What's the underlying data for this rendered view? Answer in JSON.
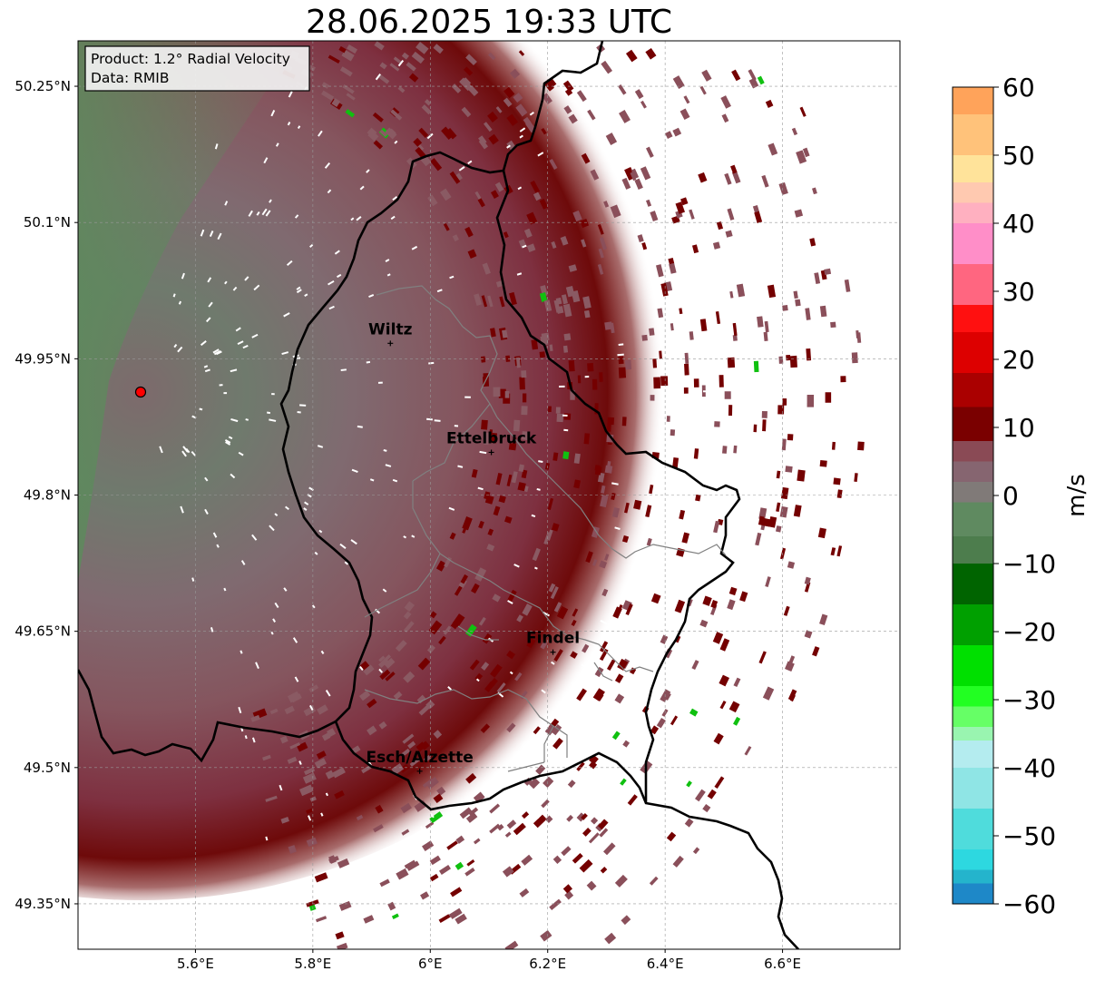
{
  "title": "28.06.2025 19:33 UTC",
  "info_box": {
    "product": "Product: 1.2° Radial Velocity",
    "data": "Data: RMIB"
  },
  "map": {
    "lon_ticks": [
      {
        "value": 5.6,
        "label": "5.6°E"
      },
      {
        "value": 5.8,
        "label": "5.8°E"
      },
      {
        "value": 6.0,
        "label": "6°E"
      },
      {
        "value": 6.2,
        "label": "6.2°E"
      },
      {
        "value": 6.4,
        "label": "6.4°E"
      },
      {
        "value": 6.6,
        "label": "6.6°E"
      }
    ],
    "lat_ticks": [
      {
        "value": 50.25,
        "label": "50.25°N"
      },
      {
        "value": 50.1,
        "label": "50.1°N"
      },
      {
        "value": 49.95,
        "label": "49.95°N"
      },
      {
        "value": 49.8,
        "label": "49.8°N"
      },
      {
        "value": 49.65,
        "label": "49.65°N"
      },
      {
        "value": 49.5,
        "label": "49.5°N"
      },
      {
        "value": 49.35,
        "label": "49.35°N"
      }
    ],
    "extent": {
      "lon_min": 5.4,
      "lon_max": 6.8,
      "lat_min": 49.3,
      "lat_max": 50.3
    },
    "radar_site": {
      "lon": 5.505,
      "lat": 49.914
    },
    "cities": [
      {
        "name": "Wiltz",
        "lon": 5.932,
        "lat": 49.967
      },
      {
        "name": "Ettelbruck",
        "lon": 6.104,
        "lat": 49.847
      },
      {
        "name": "Findel",
        "lon": 6.209,
        "lat": 49.627
      },
      {
        "name": "Esch/Alzette",
        "lon": 5.982,
        "lat": 49.496
      }
    ],
    "grid": true
  },
  "colorbar": {
    "label": "m/s",
    "min": -60,
    "max": 60,
    "ticks": [
      {
        "value": 60,
        "label": "60"
      },
      {
        "value": 50,
        "label": "50"
      },
      {
        "value": 40,
        "label": "40"
      },
      {
        "value": 30,
        "label": "30"
      },
      {
        "value": 20,
        "label": "20"
      },
      {
        "value": 10,
        "label": "10"
      },
      {
        "value": 0,
        "label": "0"
      },
      {
        "value": -10,
        "label": "−10"
      },
      {
        "value": -20,
        "label": "−20"
      },
      {
        "value": -30,
        "label": "−30"
      },
      {
        "value": -40,
        "label": "−40"
      },
      {
        "value": -50,
        "label": "−50"
      },
      {
        "value": -60,
        "label": "−60"
      }
    ],
    "bands": [
      {
        "from": 56,
        "to": 60,
        "color": "#ffa35a"
      },
      {
        "from": 50,
        "to": 56,
        "color": "#ffc27a"
      },
      {
        "from": 46,
        "to": 50,
        "color": "#ffe39a"
      },
      {
        "from": 43,
        "to": 46,
        "color": "#ffc9b0"
      },
      {
        "from": 40,
        "to": 43,
        "color": "#ffb0c0"
      },
      {
        "from": 34,
        "to": 40,
        "color": "#ff8ec8"
      },
      {
        "from": 28,
        "to": 34,
        "color": "#ff6680"
      },
      {
        "from": 24,
        "to": 28,
        "color": "#ff1010"
      },
      {
        "from": 18,
        "to": 24,
        "color": "#dd0000"
      },
      {
        "from": 13,
        "to": 18,
        "color": "#aa0000"
      },
      {
        "from": 8,
        "to": 13,
        "color": "#7a0000"
      },
      {
        "from": 5,
        "to": 8,
        "color": "#8a4a55"
      },
      {
        "from": 2,
        "to": 5,
        "color": "#866570"
      },
      {
        "from": -1,
        "to": 2,
        "color": "#807a78"
      },
      {
        "from": -6,
        "to": -1,
        "color": "#5f8a60"
      },
      {
        "from": -10,
        "to": -6,
        "color": "#4d7d4d"
      },
      {
        "from": -16,
        "to": -10,
        "color": "#006400"
      },
      {
        "from": -22,
        "to": -16,
        "color": "#00a000"
      },
      {
        "from": -28,
        "to": -22,
        "color": "#00e000"
      },
      {
        "from": -31,
        "to": -28,
        "color": "#22ff22"
      },
      {
        "from": -34,
        "to": -31,
        "color": "#66ff66"
      },
      {
        "from": -36,
        "to": -34,
        "color": "#99f5b0"
      },
      {
        "from": -40,
        "to": -36,
        "color": "#b4ecef"
      },
      {
        "from": -46,
        "to": -40,
        "color": "#8fe5e5"
      },
      {
        "from": -52,
        "to": -46,
        "color": "#4fdcdc"
      },
      {
        "from": -55,
        "to": -52,
        "color": "#2dd8e0"
      },
      {
        "from": -57,
        "to": -55,
        "color": "#24b4cc"
      },
      {
        "from": -60,
        "to": -57,
        "color": "#1e88c8"
      }
    ]
  },
  "colors": {
    "far_field": "#5f8a60",
    "mid_field": "#866570",
    "near_field": "#8a4a55",
    "strong_outbound": "#7a0000",
    "inbound": "#00c000",
    "radar_marker": "#ff0000"
  }
}
